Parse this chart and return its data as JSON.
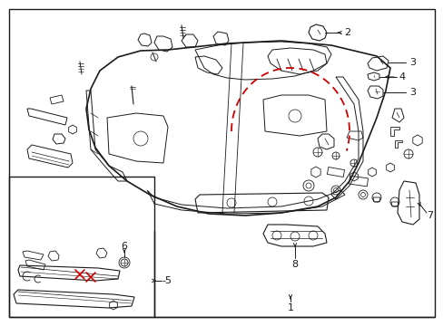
{
  "bg_color": "#ffffff",
  "line_color": "#1a1a1a",
  "red_color": "#cc0000",
  "fig_width": 4.89,
  "fig_height": 3.6,
  "dpi": 100
}
